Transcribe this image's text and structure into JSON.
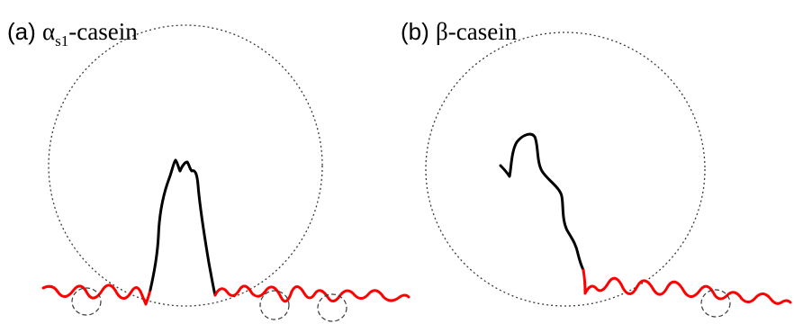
{
  "panels": [
    {
      "id": "a",
      "label_prefix": "(a) ",
      "greek": "α",
      "subscript": "s1",
      "name_suffix": "-casein",
      "hydrophobic_color": "#ff0000",
      "hydrophilic_color": "#000000"
    },
    {
      "id": "b",
      "label_prefix": "(b) ",
      "greek": "β",
      "subscript": "",
      "name_suffix": "-casein",
      "hydrophobic_color": "#ff0000",
      "hydrophilic_color": "#000000"
    }
  ]
}
